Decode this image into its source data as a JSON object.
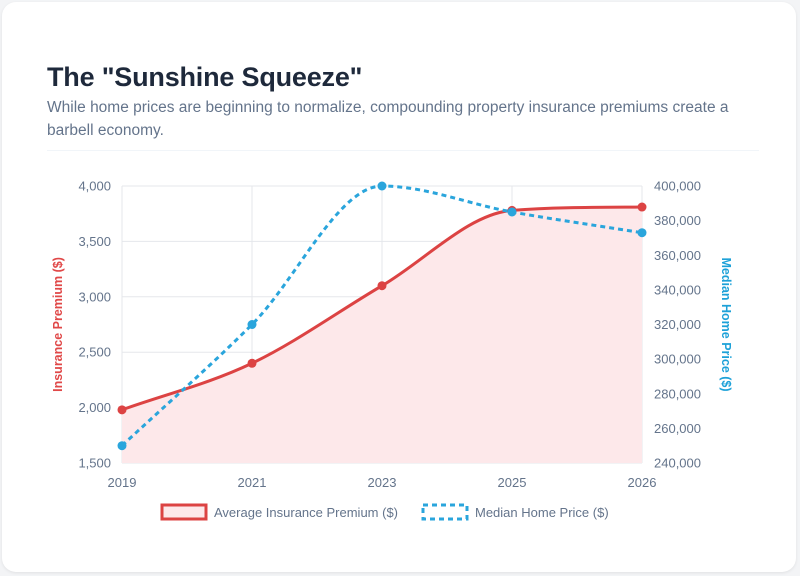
{
  "header": {
    "title": "The \"Sunshine Squeeze\"",
    "subtitle": "While home prices are beginning to normalize, compounding property insurance premiums create a barbell economy."
  },
  "chart_data": {
    "type": "line",
    "title": "The \"Sunshine Squeeze\"",
    "subtitle": "While home prices are beginning to normalize, compounding property insurance premiums create a barbell economy.",
    "categories": [
      "2019",
      "2021",
      "2023",
      "2025",
      "2026"
    ],
    "y_left": {
      "label": "Insurance Premium ($)",
      "range": [
        1500,
        4000
      ],
      "ticks": [
        1500,
        2000,
        2500,
        3000,
        3500,
        4000
      ],
      "tick_labels": [
        "1,500",
        "2,000",
        "2,500",
        "3,000",
        "3,500",
        "4,000"
      ],
      "color": "#ef4444"
    },
    "y_right": {
      "label": "Median Home Price ($)",
      "range": [
        240000,
        400000
      ],
      "ticks": [
        240000,
        260000,
        280000,
        300000,
        320000,
        340000,
        360000,
        380000,
        400000
      ],
      "tick_labels": [
        "240,000",
        "260,000",
        "280,000",
        "300,000",
        "320,000",
        "340,000",
        "360,000",
        "380,000",
        "400,000"
      ],
      "color": "#0ea5e9"
    },
    "series": [
      {
        "name": "Average Insurance Premium ($)",
        "axis": "left",
        "values": [
          1980,
          2400,
          3100,
          3780,
          3810
        ],
        "color": "#dc4343",
        "fill": "#fde8ea",
        "style": "solid-area"
      },
      {
        "name": "Median Home Price ($)",
        "axis": "right",
        "values": [
          250000,
          320000,
          400000,
          385000,
          373000
        ],
        "color": "#2aa5dc",
        "style": "dashed"
      }
    ],
    "grid": true,
    "legend_position": "bottom"
  }
}
